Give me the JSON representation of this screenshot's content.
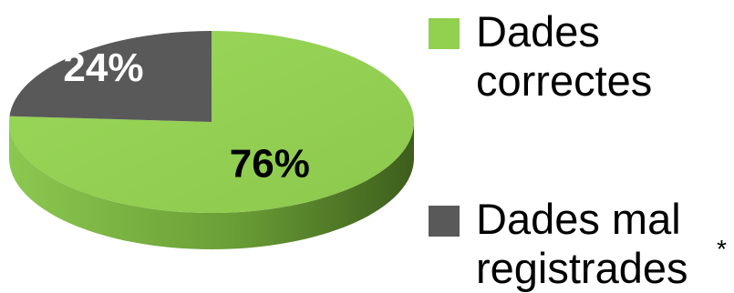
{
  "chart_data": {
    "type": "pie",
    "style": "3d",
    "categories": [
      "Dades correctes",
      "Dades mal registrades"
    ],
    "values": [
      76,
      24
    ],
    "value_labels": [
      "76%",
      "24%"
    ],
    "colors": [
      "#92D050",
      "#595959"
    ],
    "legend_placement": "right",
    "title": ""
  },
  "legend": {
    "items": [
      {
        "lines": [
          "Dades",
          "correctes"
        ],
        "color": "#92D050"
      },
      {
        "lines": [
          "Dades mal",
          "registrades"
        ],
        "color": "#595959",
        "footnote": "*"
      }
    ]
  }
}
